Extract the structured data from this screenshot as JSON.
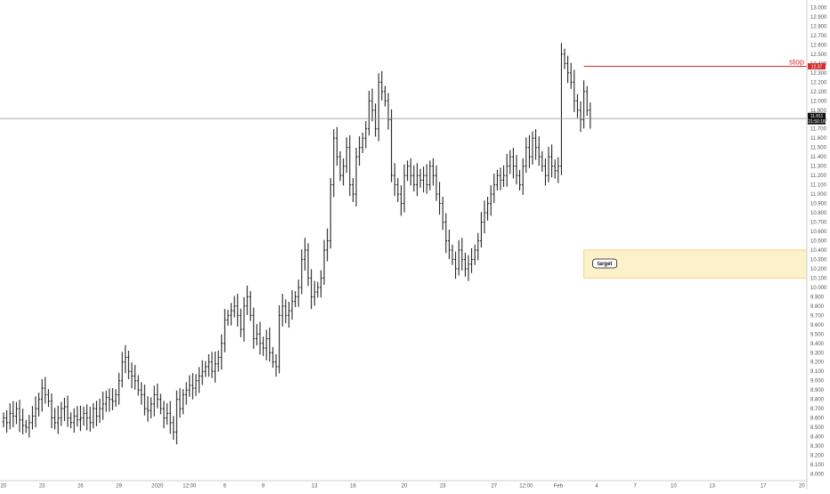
{
  "chart_data": {
    "type": "ohlc",
    "title": "",
    "xlabel": "",
    "ylabel": "",
    "ylim": [
      7.9,
      13.1
    ],
    "grid": false,
    "colors": {
      "bars": "#111111",
      "stop_line": "#d32f2f",
      "target_fill": "#fdf1cc",
      "target_border": "#f0c040",
      "last_price_line": "#9e9e9e",
      "axis": "#cfcfcf"
    },
    "y_ticks": [
      "8.000",
      "8.100",
      "8.200",
      "8.300",
      "8.400",
      "8.500",
      "8.600",
      "8.700",
      "8.800",
      "8.900",
      "9.000",
      "9.100",
      "9.200",
      "9.300",
      "9.400",
      "9.500",
      "9.600",
      "9.700",
      "9.800",
      "9.900",
      "10.000",
      "10.100",
      "10.200",
      "10.300",
      "10.400",
      "10.500",
      "10.600",
      "10.700",
      "10.800",
      "10.900",
      "11.000",
      "11.100",
      "11.200",
      "11.300",
      "11.400",
      "11.500",
      "11.600",
      "11.700",
      "11.800",
      "11.900",
      "12.000",
      "12.100",
      "12.200",
      "12.300",
      "12.400",
      "12.500",
      "12.600",
      "12.700",
      "12.800",
      "12.900",
      "13.000"
    ],
    "x_ticks": [
      {
        "label": "20",
        "i": 0
      },
      {
        "label": "23",
        "i": 12
      },
      {
        "label": "26",
        "i": 24
      },
      {
        "label": "29",
        "i": 36
      },
      {
        "label": "2020",
        "i": 48
      },
      {
        "label": "12:00",
        "i": 58
      },
      {
        "label": "6",
        "i": 69
      },
      {
        "label": "9",
        "i": 81
      },
      {
        "label": "13",
        "i": 97
      },
      {
        "label": "16",
        "i": 109
      },
      {
        "label": "20",
        "i": 125
      },
      {
        "label": "23",
        "i": 137
      },
      {
        "label": "27",
        "i": 153
      },
      {
        "label": "12:00",
        "i": 163
      },
      {
        "label": "Feb",
        "i": 173
      },
      {
        "label": "4",
        "i": 185
      },
      {
        "label": "7",
        "i": 197
      },
      {
        "label": "10",
        "i": 209
      },
      {
        "label": "13",
        "i": 221
      },
      {
        "label": "17",
        "i": 237
      },
      {
        "label": "20",
        "i": 249
      }
    ],
    "closes": [
      8.6,
      8.55,
      8.65,
      8.62,
      8.7,
      8.58,
      8.52,
      8.5,
      8.55,
      8.62,
      8.7,
      8.8,
      8.92,
      8.85,
      8.78,
      8.6,
      8.55,
      8.6,
      8.7,
      8.72,
      8.6,
      8.55,
      8.62,
      8.58,
      8.6,
      8.65,
      8.6,
      8.55,
      8.7,
      8.62,
      8.7,
      8.75,
      8.82,
      8.8,
      8.78,
      8.85,
      9.0,
      9.2,
      9.25,
      9.1,
      9.05,
      9.0,
      8.9,
      8.85,
      8.7,
      8.68,
      8.75,
      8.85,
      8.8,
      8.7,
      8.6,
      8.65,
      8.55,
      8.45,
      8.8,
      8.7,
      8.85,
      8.9,
      8.95,
      8.92,
      9.0,
      9.05,
      9.1,
      9.15,
      9.2,
      9.1,
      9.18,
      9.25,
      9.4,
      9.65,
      9.7,
      9.75,
      9.8,
      9.7,
      9.55,
      9.8,
      9.9,
      9.7,
      9.45,
      9.5,
      9.4,
      9.35,
      9.45,
      9.3,
      9.2,
      9.15,
      9.7,
      9.8,
      9.7,
      9.75,
      9.85,
      9.9,
      10.0,
      10.3,
      10.4,
      10.1,
      9.9,
      9.95,
      10.0,
      10.1,
      10.4,
      10.5,
      11.1,
      11.6,
      11.4,
      11.2,
      11.3,
      11.5,
      11.1,
      11.0,
      11.4,
      11.5,
      11.6,
      11.7,
      12.0,
      11.9,
      11.7,
      12.2,
      12.1,
      12.0,
      11.8,
      11.2,
      11.1,
      11.0,
      10.9,
      11.2,
      11.3,
      11.2,
      11.1,
      11.2,
      11.15,
      11.2,
      11.1,
      11.3,
      11.2,
      11.0,
      10.9,
      10.7,
      10.5,
      10.4,
      10.3,
      10.2,
      10.4,
      10.3,
      10.2,
      10.25,
      10.3,
      10.4,
      10.5,
      10.7,
      10.8,
      10.9,
      11.0,
      11.1,
      11.2,
      11.15,
      11.2,
      11.3,
      11.4,
      11.3,
      11.2,
      11.1,
      11.3,
      11.5,
      11.4,
      11.6,
      11.5,
      11.4,
      11.3,
      11.2,
      11.4,
      11.3,
      11.25,
      11.3,
      12.5,
      12.4,
      12.3,
      12.2,
      12.0,
      11.9,
      11.8,
      12.1,
      11.9,
      11.81
    ],
    "last_price": 11.81,
    "last_price_badge": "11.811",
    "last_price_countdown": "21:50:18",
    "stop_level": 12.37,
    "stop_label": "stop",
    "stop_badge": "12.37",
    "target_zone": [
      10.1,
      10.4
    ],
    "target_label": "target"
  }
}
